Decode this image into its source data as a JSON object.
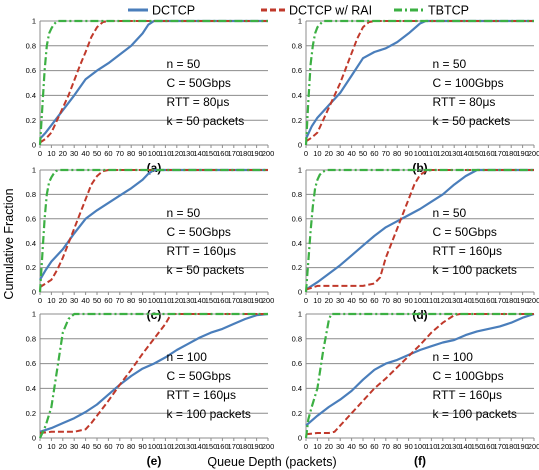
{
  "figure": {
    "ylabel": "Cumulative Fraction",
    "xlabel": "Queue Depth (packets)"
  },
  "legend": [
    {
      "name": "DCTCP",
      "color": "#4A7EBB",
      "dash": "solid"
    },
    {
      "name": "DCTCP w/ RAI",
      "color": "#C0392B",
      "dash": "dash"
    },
    {
      "name": "TBTCP",
      "color": "#3CB043",
      "dash": "dashdot"
    }
  ],
  "chart_data": [
    {
      "type": "line",
      "caption": "(a)",
      "annotation": [
        "n = 50",
        "C = 50Gbps",
        "RTT = 80μs",
        "k = 50 packets"
      ],
      "xlim": [
        0,
        200
      ],
      "ylim": [
        0,
        1
      ],
      "xticks": [
        0,
        10,
        20,
        30,
        40,
        50,
        60,
        70,
        80,
        90,
        100,
        110,
        120,
        130,
        140,
        150,
        160,
        170,
        180,
        190,
        200
      ],
      "yticks": [
        0,
        0.2,
        0.4,
        0.6,
        0.8,
        1
      ],
      "series": [
        {
          "name": "DCTCP",
          "x": [
            0,
            5,
            10,
            20,
            30,
            40,
            50,
            60,
            70,
            80,
            90,
            95,
            100,
            200
          ],
          "y": [
            0.05,
            0.1,
            0.16,
            0.28,
            0.4,
            0.53,
            0.6,
            0.66,
            0.73,
            0.8,
            0.9,
            0.97,
            1,
            1
          ]
        },
        {
          "name": "DCTCP w/ RAI",
          "x": [
            0,
            5,
            10,
            15,
            20,
            25,
            30,
            35,
            40,
            45,
            50,
            55,
            60,
            200
          ],
          "y": [
            0.02,
            0.05,
            0.1,
            0.2,
            0.3,
            0.4,
            0.52,
            0.64,
            0.75,
            0.87,
            0.95,
            0.99,
            1,
            1
          ]
        },
        {
          "name": "TBTCP",
          "x": [
            0,
            2,
            4,
            6,
            8,
            10,
            12,
            14,
            16,
            200
          ],
          "y": [
            0,
            0.3,
            0.6,
            0.8,
            0.9,
            0.94,
            0.97,
            0.99,
            1,
            1
          ]
        }
      ]
    },
    {
      "type": "line",
      "caption": "(b)",
      "annotation": [
        "n = 50",
        "C = 100Gbps",
        "RTT = 80μs",
        "k = 50 packets"
      ],
      "xlim": [
        0,
        200
      ],
      "ylim": [
        0,
        1
      ],
      "xticks": [
        0,
        10,
        20,
        30,
        40,
        50,
        60,
        70,
        80,
        90,
        100,
        110,
        120,
        130,
        140,
        150,
        160,
        170,
        180,
        190,
        200
      ],
      "yticks": [
        0,
        0.2,
        0.4,
        0.6,
        0.8,
        1
      ],
      "series": [
        {
          "name": "DCTCP",
          "x": [
            0,
            5,
            10,
            20,
            30,
            40,
            50,
            60,
            70,
            80,
            90,
            100,
            105,
            200
          ],
          "y": [
            0.05,
            0.15,
            0.22,
            0.32,
            0.42,
            0.56,
            0.7,
            0.75,
            0.78,
            0.83,
            0.9,
            0.98,
            1,
            1
          ]
        },
        {
          "name": "DCTCP w/ RAI",
          "x": [
            0,
            5,
            10,
            15,
            20,
            25,
            30,
            35,
            40,
            45,
            50,
            55,
            60,
            200
          ],
          "y": [
            0.03,
            0.06,
            0.1,
            0.2,
            0.3,
            0.4,
            0.5,
            0.62,
            0.74,
            0.86,
            0.95,
            0.99,
            1,
            1
          ]
        },
        {
          "name": "TBTCP",
          "x": [
            0,
            2,
            4,
            6,
            8,
            10,
            12,
            14,
            16,
            200
          ],
          "y": [
            0,
            0.35,
            0.65,
            0.8,
            0.9,
            0.95,
            0.97,
            0.99,
            1,
            1
          ]
        }
      ]
    },
    {
      "type": "line",
      "caption": "(c)",
      "annotation": [
        "n = 50",
        "C = 50Gbps",
        "RTT = 160μs",
        "k = 50 packets"
      ],
      "xlim": [
        0,
        200
      ],
      "ylim": [
        0,
        1
      ],
      "xticks": [
        0,
        10,
        20,
        30,
        40,
        50,
        60,
        70,
        80,
        90,
        100,
        110,
        120,
        130,
        140,
        150,
        160,
        170,
        180,
        190,
        200
      ],
      "yticks": [
        0,
        0.2,
        0.4,
        0.6,
        0.8,
        1
      ],
      "series": [
        {
          "name": "DCTCP",
          "x": [
            0,
            5,
            10,
            20,
            30,
            40,
            50,
            60,
            70,
            80,
            90,
            95,
            100,
            200
          ],
          "y": [
            0.1,
            0.18,
            0.25,
            0.35,
            0.48,
            0.6,
            0.67,
            0.73,
            0.79,
            0.85,
            0.92,
            0.97,
            1,
            1
          ]
        },
        {
          "name": "DCTCP w/ RAI",
          "x": [
            0,
            5,
            10,
            15,
            20,
            25,
            30,
            35,
            40,
            45,
            50,
            55,
            60,
            200
          ],
          "y": [
            0.04,
            0.07,
            0.1,
            0.18,
            0.28,
            0.4,
            0.52,
            0.64,
            0.76,
            0.88,
            0.95,
            0.99,
            1,
            1
          ]
        },
        {
          "name": "TBTCP",
          "x": [
            0,
            2,
            4,
            6,
            8,
            10,
            12,
            14,
            16,
            200
          ],
          "y": [
            0,
            0.3,
            0.6,
            0.8,
            0.9,
            0.94,
            0.97,
            0.99,
            1,
            1
          ]
        }
      ]
    },
    {
      "type": "line",
      "caption": "(d)",
      "annotation": [
        "n = 50",
        "C = 50Gbps",
        "RTT = 160μs",
        "k = 100 packets"
      ],
      "xlim": [
        0,
        200
      ],
      "ylim": [
        0,
        1
      ],
      "xticks": [
        0,
        10,
        20,
        30,
        40,
        50,
        60,
        70,
        80,
        90,
        100,
        110,
        120,
        130,
        140,
        150,
        160,
        170,
        180,
        190,
        200
      ],
      "yticks": [
        0,
        0.2,
        0.4,
        0.6,
        0.8,
        1
      ],
      "series": [
        {
          "name": "DCTCP",
          "x": [
            0,
            10,
            20,
            30,
            40,
            50,
            60,
            70,
            80,
            90,
            100,
            110,
            120,
            130,
            140,
            150,
            200
          ],
          "y": [
            0.02,
            0.08,
            0.15,
            0.22,
            0.3,
            0.38,
            0.46,
            0.53,
            0.58,
            0.63,
            0.68,
            0.74,
            0.8,
            0.88,
            0.95,
            1,
            1
          ]
        },
        {
          "name": "DCTCP w/ RAI",
          "x": [
            0,
            10,
            20,
            30,
            40,
            50,
            60,
            65,
            70,
            75,
            80,
            85,
            90,
            95,
            100,
            105,
            110,
            200
          ],
          "y": [
            0.02,
            0.05,
            0.05,
            0.05,
            0.05,
            0.05,
            0.07,
            0.12,
            0.28,
            0.4,
            0.52,
            0.64,
            0.76,
            0.88,
            0.96,
            0.99,
            1,
            1
          ]
        },
        {
          "name": "TBTCP",
          "x": [
            0,
            2,
            4,
            6,
            8,
            10,
            12,
            14,
            16,
            18,
            200
          ],
          "y": [
            0,
            0.25,
            0.5,
            0.7,
            0.85,
            0.92,
            0.96,
            0.98,
            0.99,
            1,
            1
          ]
        }
      ]
    },
    {
      "type": "line",
      "caption": "(e)",
      "annotation": [
        "n = 100",
        "C = 50Gbps",
        "RTT = 160μs",
        "k = 100 packets"
      ],
      "xlim": [
        0,
        200
      ],
      "ylim": [
        0,
        1
      ],
      "xticks": [
        0,
        10,
        20,
        30,
        40,
        50,
        60,
        70,
        80,
        90,
        100,
        110,
        120,
        130,
        140,
        150,
        160,
        170,
        180,
        190,
        200
      ],
      "yticks": [
        0,
        0.2,
        0.4,
        0.6,
        0.8,
        1
      ],
      "series": [
        {
          "name": "DCTCP",
          "x": [
            0,
            10,
            20,
            30,
            40,
            50,
            60,
            70,
            80,
            90,
            100,
            110,
            120,
            130,
            140,
            150,
            160,
            170,
            180,
            190,
            200
          ],
          "y": [
            0.05,
            0.08,
            0.12,
            0.16,
            0.21,
            0.27,
            0.35,
            0.43,
            0.5,
            0.56,
            0.6,
            0.65,
            0.71,
            0.76,
            0.81,
            0.85,
            0.88,
            0.92,
            0.96,
            0.99,
            1
          ]
        },
        {
          "name": "DCTCP w/ RAI",
          "x": [
            0,
            10,
            20,
            30,
            40,
            45,
            50,
            60,
            70,
            80,
            90,
            100,
            110,
            115,
            200
          ],
          "y": [
            0.04,
            0.05,
            0.05,
            0.05,
            0.07,
            0.12,
            0.18,
            0.3,
            0.43,
            0.55,
            0.68,
            0.8,
            0.92,
            1,
            1
          ]
        },
        {
          "name": "TBTCP",
          "x": [
            0,
            5,
            10,
            15,
            20,
            25,
            30,
            200
          ],
          "y": [
            0,
            0.1,
            0.25,
            0.55,
            0.85,
            0.96,
            1,
            1
          ]
        }
      ]
    },
    {
      "type": "line",
      "caption": "(f)",
      "annotation": [
        "n = 100",
        "C = 100Gbps",
        "RTT = 160μs",
        "k = 100 packets"
      ],
      "xlim": [
        0,
        200
      ],
      "ylim": [
        0,
        1
      ],
      "xticks": [
        0,
        10,
        20,
        30,
        40,
        50,
        60,
        70,
        80,
        90,
        100,
        110,
        120,
        130,
        140,
        150,
        160,
        170,
        180,
        190,
        200
      ],
      "yticks": [
        0,
        0.2,
        0.4,
        0.6,
        0.8,
        1
      ],
      "series": [
        {
          "name": "DCTCP",
          "x": [
            0,
            10,
            20,
            30,
            40,
            50,
            60,
            70,
            80,
            90,
            100,
            110,
            120,
            130,
            140,
            150,
            160,
            170,
            180,
            190,
            200
          ],
          "y": [
            0.1,
            0.18,
            0.25,
            0.31,
            0.38,
            0.47,
            0.55,
            0.6,
            0.63,
            0.67,
            0.71,
            0.74,
            0.77,
            0.79,
            0.83,
            0.86,
            0.88,
            0.9,
            0.93,
            0.97,
            1
          ]
        },
        {
          "name": "DCTCP w/ RAI",
          "x": [
            0,
            10,
            20,
            25,
            30,
            40,
            50,
            60,
            70,
            80,
            90,
            100,
            110,
            120,
            130,
            135,
            200
          ],
          "y": [
            0.03,
            0.04,
            0.04,
            0.05,
            0.1,
            0.2,
            0.3,
            0.4,
            0.48,
            0.57,
            0.66,
            0.75,
            0.85,
            0.93,
            0.99,
            1,
            1
          ]
        },
        {
          "name": "TBTCP",
          "x": [
            0,
            2,
            5,
            10,
            15,
            20,
            22,
            200
          ],
          "y": [
            0,
            0.15,
            0.25,
            0.4,
            0.7,
            0.95,
            1,
            1
          ]
        }
      ]
    }
  ]
}
